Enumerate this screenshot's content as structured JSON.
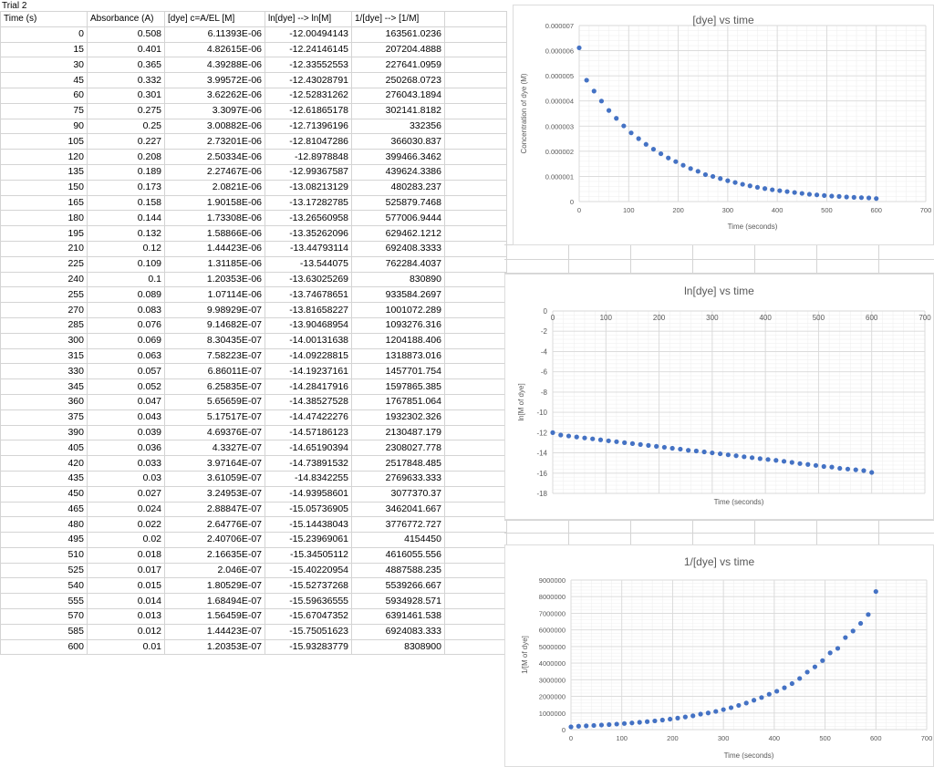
{
  "sheet": {
    "title": "Trial 2",
    "headers": [
      "Time (s)",
      "Absorbance (A)",
      "[dye] c=A/EL [M]",
      "ln[dye] --> ln[M]",
      "1/[dye] --> [1/M]"
    ],
    "rows": [
      [
        "0",
        "0.508",
        "6.11393E-06",
        "-12.00494143",
        "163561.0236"
      ],
      [
        "15",
        "0.401",
        "4.82615E-06",
        "-12.24146145",
        "207204.4888"
      ],
      [
        "30",
        "0.365",
        "4.39288E-06",
        "-12.33552553",
        "227641.0959"
      ],
      [
        "45",
        "0.332",
        "3.99572E-06",
        "-12.43028791",
        "250268.0723"
      ],
      [
        "60",
        "0.301",
        "3.62262E-06",
        "-12.52831262",
        "276043.1894"
      ],
      [
        "75",
        "0.275",
        "3.3097E-06",
        "-12.61865178",
        "302141.8182"
      ],
      [
        "90",
        "0.25",
        "3.00882E-06",
        "-12.71396196",
        "332356"
      ],
      [
        "105",
        "0.227",
        "2.73201E-06",
        "-12.81047286",
        "366030.837"
      ],
      [
        "120",
        "0.208",
        "2.50334E-06",
        "-12.8978848",
        "399466.3462"
      ],
      [
        "135",
        "0.189",
        "2.27467E-06",
        "-12.99367587",
        "439624.3386"
      ],
      [
        "150",
        "0.173",
        "2.0821E-06",
        "-13.08213129",
        "480283.237"
      ],
      [
        "165",
        "0.158",
        "1.90158E-06",
        "-13.17282785",
        "525879.7468"
      ],
      [
        "180",
        "0.144",
        "1.73308E-06",
        "-13.26560958",
        "577006.9444"
      ],
      [
        "195",
        "0.132",
        "1.58866E-06",
        "-13.35262096",
        "629462.1212"
      ],
      [
        "210",
        "0.12",
        "1.44423E-06",
        "-13.44793114",
        "692408.3333"
      ],
      [
        "225",
        "0.109",
        "1.31185E-06",
        "-13.544075",
        "762284.4037"
      ],
      [
        "240",
        "0.1",
        "1.20353E-06",
        "-13.63025269",
        "830890"
      ],
      [
        "255",
        "0.089",
        "1.07114E-06",
        "-13.74678651",
        "933584.2697"
      ],
      [
        "270",
        "0.083",
        "9.98929E-07",
        "-13.81658227",
        "1001072.289"
      ],
      [
        "285",
        "0.076",
        "9.14682E-07",
        "-13.90468954",
        "1093276.316"
      ],
      [
        "300",
        "0.069",
        "8.30435E-07",
        "-14.00131638",
        "1204188.406"
      ],
      [
        "315",
        "0.063",
        "7.58223E-07",
        "-14.09228815",
        "1318873.016"
      ],
      [
        "330",
        "0.057",
        "6.86011E-07",
        "-14.19237161",
        "1457701.754"
      ],
      [
        "345",
        "0.052",
        "6.25835E-07",
        "-14.28417916",
        "1597865.385"
      ],
      [
        "360",
        "0.047",
        "5.65659E-07",
        "-14.38527528",
        "1767851.064"
      ],
      [
        "375",
        "0.043",
        "5.17517E-07",
        "-14.47422276",
        "1932302.326"
      ],
      [
        "390",
        "0.039",
        "4.69376E-07",
        "-14.57186123",
        "2130487.179"
      ],
      [
        "405",
        "0.036",
        "4.3327E-07",
        "-14.65190394",
        "2308027.778"
      ],
      [
        "420",
        "0.033",
        "3.97164E-07",
        "-14.73891532",
        "2517848.485"
      ],
      [
        "435",
        "0.03",
        "3.61059E-07",
        "-14.8342255",
        "2769633.333"
      ],
      [
        "450",
        "0.027",
        "3.24953E-07",
        "-14.93958601",
        "3077370.37"
      ],
      [
        "465",
        "0.024",
        "2.88847E-07",
        "-15.05736905",
        "3462041.667"
      ],
      [
        "480",
        "0.022",
        "2.64776E-07",
        "-15.14438043",
        "3776772.727"
      ],
      [
        "495",
        "0.02",
        "2.40706E-07",
        "-15.23969061",
        "4154450"
      ],
      [
        "510",
        "0.018",
        "2.16635E-07",
        "-15.34505112",
        "4616055.556"
      ],
      [
        "525",
        "0.017",
        "2.046E-07",
        "-15.40220954",
        "4887588.235"
      ],
      [
        "540",
        "0.015",
        "1.80529E-07",
        "-15.52737268",
        "5539266.667"
      ],
      [
        "555",
        "0.014",
        "1.68494E-07",
        "-15.59636555",
        "5934928.571"
      ],
      [
        "570",
        "0.013",
        "1.56459E-07",
        "-15.67047352",
        "6391461.538"
      ],
      [
        "585",
        "0.012",
        "1.44423E-07",
        "-15.75051623",
        "6924083.333"
      ],
      [
        "600",
        "0.01",
        "1.20353E-07",
        "-15.93283779",
        "8308900"
      ]
    ]
  },
  "colors": {
    "marker": "#4472c4",
    "grid_major": "#d9d9d9",
    "grid_minor": "#f0f0f0",
    "cell_border": "#d4d4d4",
    "axis_text": "#595959"
  },
  "chart_data": [
    {
      "type": "scatter",
      "title": "[dye] vs time",
      "xlabel": "Time (seconds)",
      "ylabel": "Concentration of dye (M)",
      "xlim": [
        0,
        700
      ],
      "ylim": [
        0,
        7e-06
      ],
      "xticks": [
        0,
        100,
        200,
        300,
        400,
        500,
        600,
        700
      ],
      "xtick_labels": [
        "0",
        "100",
        "200",
        "300",
        "400",
        "500",
        "600",
        "700"
      ],
      "yticks": [
        0,
        1e-06,
        2e-06,
        3e-06,
        4e-06,
        5e-06,
        6e-06,
        7e-06
      ],
      "ytick_labels": [
        "0",
        "0.000001",
        "0.000002",
        "0.000003",
        "0.000004",
        "0.000005",
        "0.000006",
        "0.000007"
      ],
      "grid": true,
      "x": [
        0,
        15,
        30,
        45,
        60,
        75,
        90,
        105,
        120,
        135,
        150,
        165,
        180,
        195,
        210,
        225,
        240,
        255,
        270,
        285,
        300,
        315,
        330,
        345,
        360,
        375,
        390,
        405,
        420,
        435,
        450,
        465,
        480,
        495,
        510,
        525,
        540,
        555,
        570,
        585,
        600
      ],
      "y": [
        6.11393e-06,
        4.82615e-06,
        4.39288e-06,
        3.99572e-06,
        3.62262e-06,
        3.3097e-06,
        3.00882e-06,
        2.73201e-06,
        2.50334e-06,
        2.27467e-06,
        2.0821e-06,
        1.90158e-06,
        1.73308e-06,
        1.58866e-06,
        1.44423e-06,
        1.31185e-06,
        1.20353e-06,
        1.07114e-06,
        9.98929e-07,
        9.14682e-07,
        8.30435e-07,
        7.58223e-07,
        6.86011e-07,
        6.25835e-07,
        5.65659e-07,
        5.17517e-07,
        4.69376e-07,
        4.3327e-07,
        3.97164e-07,
        3.61059e-07,
        3.24953e-07,
        2.88847e-07,
        2.64776e-07,
        2.40706e-07,
        2.16635e-07,
        2.046e-07,
        1.80529e-07,
        1.68494e-07,
        1.56459e-07,
        1.44423e-07,
        1.20353e-07
      ]
    },
    {
      "type": "scatter",
      "title": "ln[dye] vs time",
      "xlabel": "Time (seconds)",
      "ylabel": "ln[M of dye]",
      "xlim": [
        0,
        700
      ],
      "ylim": [
        -18,
        0
      ],
      "xticks": [
        0,
        100,
        200,
        300,
        400,
        500,
        600,
        700
      ],
      "xtick_labels": [
        "0",
        "100",
        "200",
        "300",
        "400",
        "500",
        "600",
        "700"
      ],
      "yticks": [
        0,
        -2,
        -4,
        -6,
        -8,
        -10,
        -12,
        -14,
        -16,
        -18
      ],
      "ytick_labels": [
        "0",
        "-2",
        "-4",
        "-6",
        "-8",
        "-10",
        "-12",
        "-14",
        "-16",
        "-18"
      ],
      "grid": true,
      "x_axis_at_top": true,
      "x": [
        0,
        15,
        30,
        45,
        60,
        75,
        90,
        105,
        120,
        135,
        150,
        165,
        180,
        195,
        210,
        225,
        240,
        255,
        270,
        285,
        300,
        315,
        330,
        345,
        360,
        375,
        390,
        405,
        420,
        435,
        450,
        465,
        480,
        495,
        510,
        525,
        540,
        555,
        570,
        585,
        600
      ],
      "y": [
        -12.00494143,
        -12.24146145,
        -12.33552553,
        -12.43028791,
        -12.52831262,
        -12.61865178,
        -12.71396196,
        -12.81047286,
        -12.8978848,
        -12.99367587,
        -13.08213129,
        -13.17282785,
        -13.26560958,
        -13.35262096,
        -13.44793114,
        -13.544075,
        -13.63025269,
        -13.74678651,
        -13.81658227,
        -13.90468954,
        -14.00131638,
        -14.09228815,
        -14.19237161,
        -14.28417916,
        -14.38527528,
        -14.47422276,
        -14.57186123,
        -14.65190394,
        -14.73891532,
        -14.8342255,
        -14.93958601,
        -15.05736905,
        -15.14438043,
        -15.23969061,
        -15.34505112,
        -15.40220954,
        -15.52737268,
        -15.59636555,
        -15.67047352,
        -15.75051623,
        -15.93283779
      ]
    },
    {
      "type": "scatter",
      "title": "1/[dye] vs time",
      "xlabel": "Time (seconds)",
      "ylabel": "1/[M of dye]",
      "xlim": [
        0,
        700
      ],
      "ylim": [
        0,
        9000000
      ],
      "xticks": [
        0,
        100,
        200,
        300,
        400,
        500,
        600,
        700
      ],
      "xtick_labels": [
        "0",
        "100",
        "200",
        "300",
        "400",
        "500",
        "600",
        "700"
      ],
      "yticks": [
        0,
        1000000,
        2000000,
        3000000,
        4000000,
        5000000,
        6000000,
        7000000,
        8000000,
        9000000
      ],
      "ytick_labels": [
        "0",
        "1000000",
        "2000000",
        "3000000",
        "4000000",
        "5000000",
        "6000000",
        "7000000",
        "8000000",
        "9000000"
      ],
      "grid": true,
      "x": [
        0,
        15,
        30,
        45,
        60,
        75,
        90,
        105,
        120,
        135,
        150,
        165,
        180,
        195,
        210,
        225,
        240,
        255,
        270,
        285,
        300,
        315,
        330,
        345,
        360,
        375,
        390,
        405,
        420,
        435,
        450,
        465,
        480,
        495,
        510,
        525,
        540,
        555,
        570,
        585,
        600
      ],
      "y": [
        163561.0236,
        207204.4888,
        227641.0959,
        250268.0723,
        276043.1894,
        302141.8182,
        332356,
        366030.837,
        399466.3462,
        439624.3386,
        480283.237,
        525879.7468,
        577006.9444,
        629462.1212,
        692408.3333,
        762284.4037,
        830890,
        933584.2697,
        1001072.289,
        1093276.316,
        1204188.406,
        1318873.016,
        1457701.754,
        1597865.385,
        1767851.064,
        1932302.326,
        2130487.179,
        2308027.778,
        2517848.485,
        2769633.333,
        3077370.37,
        3462041.667,
        3776772.727,
        4154450,
        4616055.556,
        4887588.235,
        5539266.667,
        5934928.571,
        6391461.538,
        6924083.333,
        8308900
      ]
    }
  ]
}
